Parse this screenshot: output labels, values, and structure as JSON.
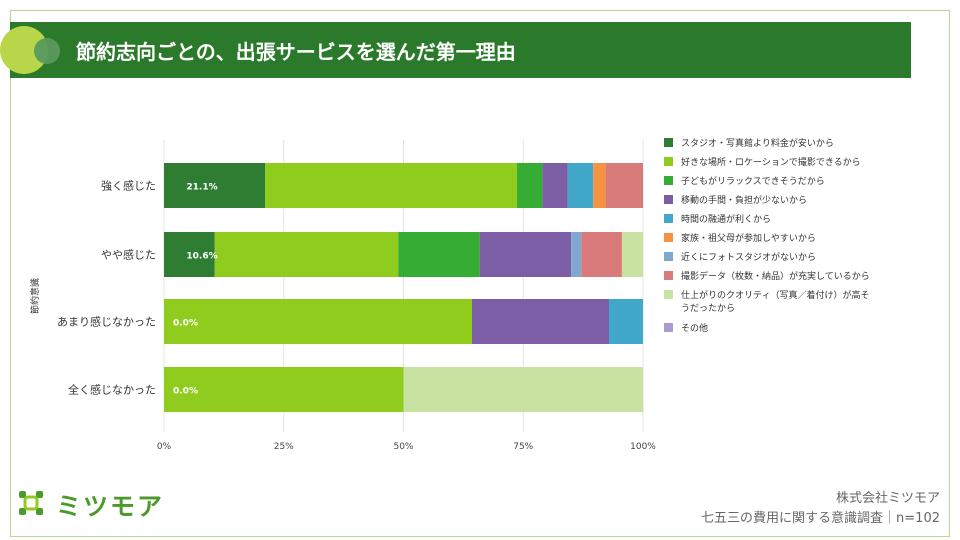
{
  "title": "節約志向ごとの、出張サービスを選んだ第一理由",
  "logo": {
    "text": "ミツモア",
    "icon": "mitsumore-logo-icon"
  },
  "footer": {
    "company": "株式会社ミツモア",
    "survey": "七五三の費用に関する意識調査｜n=102"
  },
  "colors": {
    "title_bar": "#2b7a2c",
    "frame": "#b5d88a",
    "accent_circle": "#b9d64b"
  },
  "chart_data": {
    "type": "bar",
    "orientation": "horizontal",
    "stacked": true,
    "ylabel": "節約意識",
    "categories": [
      "強く感じた",
      "やや感じた",
      "あまり感じなかった",
      "全く感じなかった"
    ],
    "xlim": [
      0,
      100
    ],
    "xticks": [
      "0%",
      "25%",
      "50%",
      "75%",
      "100%"
    ],
    "grid": true,
    "legend_position": "right",
    "series": [
      {
        "name": "スタジオ・写真館より料金が安いから",
        "color": "#2e7d32",
        "values": [
          21.1,
          10.6,
          0,
          0
        ]
      },
      {
        "name": "好きな場所・ロケーションで撮影できるから",
        "color": "#8fcc1e",
        "values": [
          52.6,
          38.3,
          64.3,
          50.0
        ]
      },
      {
        "name": "子どもがリラックスできそうだから",
        "color": "#35ad35",
        "values": [
          5.3,
          17.0,
          0,
          0
        ]
      },
      {
        "name": "移動の手間・負担が少ないから",
        "color": "#7b5ea6",
        "values": [
          5.3,
          19.1,
          28.6,
          0
        ]
      },
      {
        "name": "時間の融通が利くから",
        "color": "#42a8c9",
        "values": [
          5.3,
          0,
          7.1,
          0
        ]
      },
      {
        "name": "家族・祖父母が参加しやすいから",
        "color": "#f59342",
        "values": [
          2.6,
          0,
          0,
          0
        ]
      },
      {
        "name": "近くにフォトスタジオがないから",
        "color": "#7fa8d1",
        "values": [
          0,
          2.1,
          0,
          0
        ]
      },
      {
        "name": "撮影データ（枚数・納品）が充実しているから",
        "color": "#d97b7b",
        "values": [
          7.8,
          8.5,
          0,
          0
        ]
      },
      {
        "name": "仕上がりのクオリティ（写真／着付け）が高そうだったから",
        "color": "#c7e2a1",
        "values": [
          0,
          4.4,
          0,
          50.0
        ]
      },
      {
        "name": "その他",
        "color": "#a99bd0",
        "values": [
          0,
          0,
          0,
          0
        ]
      }
    ],
    "data_labels": [
      "21.1%",
      "10.6%",
      "0.0%",
      "0.0%"
    ]
  }
}
